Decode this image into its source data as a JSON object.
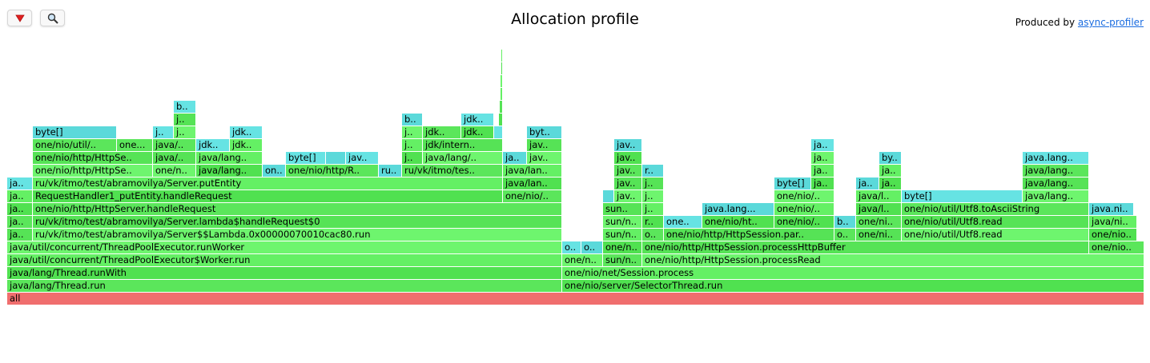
{
  "toolbar": {
    "reverse_icon": "down-triangle-icon",
    "search_icon": "magnifier-icon"
  },
  "title": "Allocation profile",
  "status": {
    "prefix": "Produced by ",
    "link": "async-profiler"
  },
  "colors": {
    "java_frame": "#5be65b",
    "allocation_frame": "#66e3e3",
    "root_frame": "#f06e6e",
    "link": "#1a6ce0"
  },
  "frames": [
    {
      "lvl": 0,
      "a": 9,
      "b": 1429,
      "c": "R",
      "t": "all"
    },
    {
      "lvl": 1,
      "a": 9,
      "b": 702,
      "t": "java/lang/Thread.run"
    },
    {
      "lvl": 1,
      "a": 702,
      "b": 1429,
      "t": "one/nio/server/SelectorThread.run"
    },
    {
      "lvl": 2,
      "a": 9,
      "b": 702,
      "t": "java/lang/Thread.runWith"
    },
    {
      "lvl": 2,
      "a": 702,
      "b": 1429,
      "t": "one/nio/net/Session.process"
    },
    {
      "lvl": 3,
      "a": 9,
      "b": 702,
      "t": "java/util/concurrent/ThreadPoolExecutor$Worker.run"
    },
    {
      "lvl": 3,
      "a": 702,
      "b": 753,
      "t": "one/n.."
    },
    {
      "lvl": 3,
      "a": 753,
      "b": 802,
      "t": "sun/n.."
    },
    {
      "lvl": 3,
      "a": 802,
      "b": 1429,
      "t": "one/nio/http/HttpSession.processRead"
    },
    {
      "lvl": 4,
      "a": 9,
      "b": 702,
      "t": "java/util/concurrent/ThreadPoolExecutor.runWorker"
    },
    {
      "lvl": 4,
      "a": 702,
      "b": 726,
      "c": "A",
      "t": "o.."
    },
    {
      "lvl": 4,
      "a": 726,
      "b": 753,
      "c": "A",
      "t": "o.."
    },
    {
      "lvl": 4,
      "a": 753,
      "b": 802,
      "t": "one/n.."
    },
    {
      "lvl": 4,
      "a": 802,
      "b": 1360,
      "t": "one/nio/http/HttpSession.processHttpBuffer"
    },
    {
      "lvl": 4,
      "a": 1360,
      "b": 1429,
      "t": "one/nio.."
    },
    {
      "lvl": 5,
      "a": 9,
      "b": 41,
      "t": "ja.."
    },
    {
      "lvl": 5,
      "a": 41,
      "b": 702,
      "t": "ru/vk/itmo/test/abramovilya/Server$$Lambda.0x00000070010cac80.run"
    },
    {
      "lvl": 5,
      "a": 753,
      "b": 802,
      "t": "sun/n.."
    },
    {
      "lvl": 5,
      "a": 802,
      "b": 829,
      "t": "o.."
    },
    {
      "lvl": 5,
      "a": 829,
      "b": 1042,
      "t": "one/nio/http/HttpSession.par.."
    },
    {
      "lvl": 5,
      "a": 1042,
      "b": 1069,
      "t": "o.."
    },
    {
      "lvl": 5,
      "a": 1069,
      "b": 1126,
      "t": "one/ni.."
    },
    {
      "lvl": 5,
      "a": 1126,
      "b": 1360,
      "t": "one/nio/util/Utf8.read"
    },
    {
      "lvl": 5,
      "a": 1360,
      "b": 1420,
      "t": "one/nio.."
    },
    {
      "lvl": 6,
      "a": 9,
      "b": 41,
      "t": "ja.."
    },
    {
      "lvl": 6,
      "a": 41,
      "b": 702,
      "t": "ru/vk/itmo/test/abramovilya/Server.lambda$handleRequest$0"
    },
    {
      "lvl": 6,
      "a": 753,
      "b": 802,
      "t": "sun/n.."
    },
    {
      "lvl": 6,
      "a": 802,
      "b": 829,
      "t": "r.."
    },
    {
      "lvl": 6,
      "a": 829,
      "b": 877,
      "c": "A",
      "t": "one.."
    },
    {
      "lvl": 6,
      "a": 877,
      "b": 967,
      "t": "one/nio/ht.."
    },
    {
      "lvl": 6,
      "a": 967,
      "b": 1042,
      "t": "one/nio/.."
    },
    {
      "lvl": 6,
      "a": 1042,
      "b": 1069,
      "c": "A",
      "t": "b.."
    },
    {
      "lvl": 6,
      "a": 1069,
      "b": 1126,
      "t": "one/ni.."
    },
    {
      "lvl": 6,
      "a": 1126,
      "b": 1360,
      "t": "one/nio/util/Utf8.read"
    },
    {
      "lvl": 6,
      "a": 1360,
      "b": 1420,
      "t": "java/ni.."
    },
    {
      "lvl": 7,
      "a": 9,
      "b": 41,
      "t": "ja.."
    },
    {
      "lvl": 7,
      "a": 41,
      "b": 702,
      "t": "one/nio/http/HttpServer.handleRequest"
    },
    {
      "lvl": 7,
      "a": 753,
      "b": 802,
      "t": "sun.."
    },
    {
      "lvl": 7,
      "a": 802,
      "b": 829,
      "t": "j.."
    },
    {
      "lvl": 7,
      "a": 877,
      "b": 967,
      "c": "A",
      "t": "java.lang..."
    },
    {
      "lvl": 7,
      "a": 967,
      "b": 1042,
      "t": "one/nio/.."
    },
    {
      "lvl": 7,
      "a": 1069,
      "b": 1126,
      "t": "java/l.."
    },
    {
      "lvl": 7,
      "a": 1126,
      "b": 1360,
      "t": "one/nio/util/Utf8.toAsciiString"
    },
    {
      "lvl": 7,
      "a": 1360,
      "b": 1416,
      "c": "A",
      "t": "java.ni.."
    },
    {
      "lvl": 8,
      "a": 9,
      "b": 41,
      "t": "ja.."
    },
    {
      "lvl": 8,
      "a": 41,
      "b": 628,
      "t": "RequestHandler1_putEntity.handleRequest"
    },
    {
      "lvl": 8,
      "a": 628,
      "b": 702,
      "t": "one/nio/.."
    },
    {
      "lvl": 8,
      "a": 753,
      "b": 767,
      "c": "A",
      "t": ""
    },
    {
      "lvl": 8,
      "a": 767,
      "b": 802,
      "t": "jav.."
    },
    {
      "lvl": 8,
      "a": 802,
      "b": 829,
      "t": "j.."
    },
    {
      "lvl": 8,
      "a": 967,
      "b": 1042,
      "t": "one/nio/.."
    },
    {
      "lvl": 8,
      "a": 1069,
      "b": 1126,
      "t": "java/l.."
    },
    {
      "lvl": 8,
      "a": 1126,
      "b": 1277,
      "c": "A",
      "t": "byte[]"
    },
    {
      "lvl": 8,
      "a": 1277,
      "b": 1360,
      "t": "java/lang.."
    },
    {
      "lvl": 9,
      "a": 9,
      "b": 41,
      "c": "A",
      "t": "ja.."
    },
    {
      "lvl": 9,
      "a": 41,
      "b": 628,
      "t": "ru/vk/itmo/test/abramovilya/Server.putEntity"
    },
    {
      "lvl": 9,
      "a": 628,
      "b": 702,
      "t": "java/lan.."
    },
    {
      "lvl": 9,
      "a": 767,
      "b": 802,
      "t": "jav.."
    },
    {
      "lvl": 9,
      "a": 802,
      "b": 829,
      "t": "j.."
    },
    {
      "lvl": 9,
      "a": 967,
      "b": 1013,
      "c": "A",
      "t": "byte[]"
    },
    {
      "lvl": 9,
      "a": 1013,
      "b": 1042,
      "t": "ja.."
    },
    {
      "lvl": 9,
      "a": 1069,
      "b": 1098,
      "c": "A",
      "t": "ja.."
    },
    {
      "lvl": 9,
      "a": 1098,
      "b": 1126,
      "t": "ja.."
    },
    {
      "lvl": 9,
      "a": 1277,
      "b": 1360,
      "t": "java/lang.."
    },
    {
      "lvl": 10,
      "a": 41,
      "b": 191,
      "t": "one/nio/http/HttpSe.."
    },
    {
      "lvl": 10,
      "a": 191,
      "b": 245,
      "t": "one/n.."
    },
    {
      "lvl": 10,
      "a": 245,
      "b": 328,
      "t": "java/lang.."
    },
    {
      "lvl": 10,
      "a": 328,
      "b": 357,
      "c": "A",
      "t": "on.."
    },
    {
      "lvl": 10,
      "a": 357,
      "b": 473,
      "t": "one/nio/http/R.."
    },
    {
      "lvl": 10,
      "a": 473,
      "b": 502,
      "c": "A",
      "t": "ru.."
    },
    {
      "lvl": 10,
      "a": 502,
      "b": 628,
      "t": "ru/vk/itmo/tes.."
    },
    {
      "lvl": 10,
      "a": 628,
      "b": 702,
      "t": "java/lan.."
    },
    {
      "lvl": 10,
      "a": 767,
      "b": 802,
      "t": "jav.."
    },
    {
      "lvl": 10,
      "a": 802,
      "b": 829,
      "c": "A",
      "t": "r.."
    },
    {
      "lvl": 10,
      "a": 1013,
      "b": 1042,
      "t": "ja.."
    },
    {
      "lvl": 10,
      "a": 1098,
      "b": 1126,
      "t": "ja.."
    },
    {
      "lvl": 10,
      "a": 1277,
      "b": 1360,
      "t": "java/lang.."
    },
    {
      "lvl": 11,
      "a": 41,
      "b": 191,
      "t": "one/nio/http/HttpSe.."
    },
    {
      "lvl": 11,
      "a": 191,
      "b": 245,
      "t": "java/.."
    },
    {
      "lvl": 11,
      "a": 245,
      "b": 328,
      "t": "java/lang.."
    },
    {
      "lvl": 11,
      "a": 357,
      "b": 407,
      "c": "A",
      "t": "byte[]"
    },
    {
      "lvl": 11,
      "a": 407,
      "b": 432,
      "c": "A",
      "t": ""
    },
    {
      "lvl": 11,
      "a": 432,
      "b": 473,
      "c": "A",
      "t": "jav.."
    },
    {
      "lvl": 11,
      "a": 502,
      "b": 528,
      "t": "j.."
    },
    {
      "lvl": 11,
      "a": 528,
      "b": 628,
      "t": "java/lang/.."
    },
    {
      "lvl": 11,
      "a": 628,
      "b": 658,
      "c": "A",
      "t": "ja.."
    },
    {
      "lvl": 11,
      "a": 658,
      "b": 702,
      "t": "jav.."
    },
    {
      "lvl": 11,
      "a": 767,
      "b": 802,
      "t": "jav.."
    },
    {
      "lvl": 11,
      "a": 1013,
      "b": 1042,
      "t": "ja.."
    },
    {
      "lvl": 11,
      "a": 1098,
      "b": 1126,
      "c": "A",
      "t": "by.."
    },
    {
      "lvl": 11,
      "a": 1277,
      "b": 1360,
      "c": "A",
      "t": "java.lang.."
    },
    {
      "lvl": 12,
      "a": 41,
      "b": 146,
      "t": "one/nio/util/.."
    },
    {
      "lvl": 12,
      "a": 146,
      "b": 191,
      "t": "one..."
    },
    {
      "lvl": 12,
      "a": 191,
      "b": 245,
      "t": "java/.."
    },
    {
      "lvl": 12,
      "a": 245,
      "b": 287,
      "c": "A",
      "t": "jdk.."
    },
    {
      "lvl": 12,
      "a": 287,
      "b": 328,
      "t": "jdk.."
    },
    {
      "lvl": 12,
      "a": 502,
      "b": 528,
      "t": "j.."
    },
    {
      "lvl": 12,
      "a": 528,
      "b": 628,
      "t": "jdk/intern.."
    },
    {
      "lvl": 12,
      "a": 658,
      "b": 702,
      "t": "jav.."
    },
    {
      "lvl": 12,
      "a": 767,
      "b": 802,
      "c": "A",
      "t": "jav.."
    },
    {
      "lvl": 12,
      "a": 1013,
      "b": 1042,
      "c": "A",
      "t": "ja.."
    },
    {
      "lvl": 13,
      "a": 41,
      "b": 146,
      "c": "A",
      "t": "byte[]"
    },
    {
      "lvl": 13,
      "a": 191,
      "b": 217,
      "c": "A",
      "t": "j.."
    },
    {
      "lvl": 13,
      "a": 217,
      "b": 245,
      "t": "j.."
    },
    {
      "lvl": 13,
      "a": 287,
      "b": 328,
      "c": "A",
      "t": "jdk.."
    },
    {
      "lvl": 13,
      "a": 502,
      "b": 528,
      "t": "j.."
    },
    {
      "lvl": 13,
      "a": 528,
      "b": 576,
      "t": "jdk.."
    },
    {
      "lvl": 13,
      "a": 576,
      "b": 617,
      "t": "jdk.."
    },
    {
      "lvl": 13,
      "a": 617,
      "b": 628,
      "c": "A",
      "t": ""
    },
    {
      "lvl": 13,
      "a": 658,
      "b": 702,
      "c": "A",
      "t": "byt.."
    },
    {
      "lvl": 14,
      "a": 217,
      "b": 245,
      "t": "j.."
    },
    {
      "lvl": 14,
      "a": 502,
      "b": 528,
      "c": "A",
      "t": "b.."
    },
    {
      "lvl": 14,
      "a": 576,
      "b": 617,
      "c": "A",
      "t": "jdk.."
    },
    {
      "lvl": 14,
      "a": 623,
      "b": 628,
      "t": ""
    },
    {
      "lvl": 15,
      "a": 217,
      "b": 245,
      "c": "A",
      "t": "b.."
    },
    {
      "lvl": 15,
      "a": 624,
      "b": 628,
      "t": ""
    },
    {
      "lvl": 16,
      "a": 625,
      "b": 628,
      "t": ""
    },
    {
      "lvl": 17,
      "a": 625,
      "b": 628,
      "t": ""
    },
    {
      "lvl": 18,
      "a": 626,
      "b": 628,
      "t": ""
    },
    {
      "lvl": 19,
      "a": 626,
      "b": 628,
      "t": ""
    }
  ]
}
